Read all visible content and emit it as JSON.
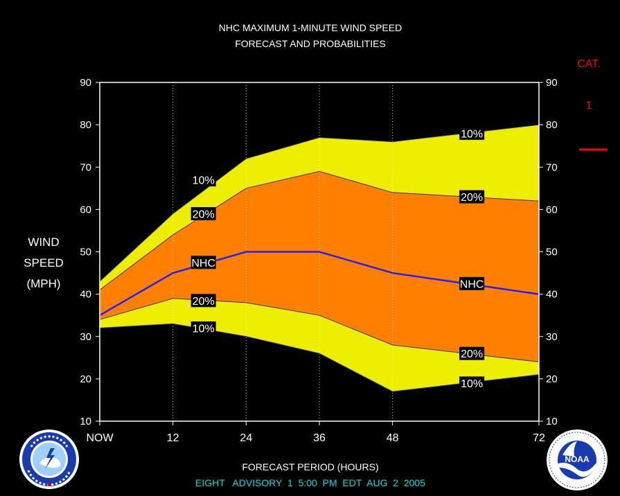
{
  "title_line1": "NHC MAXIMUM 1-MINUTE WIND SPEED",
  "title_line2": "FORECAST AND PROBABILITIES",
  "footer_xlabel": "FORECAST PERIOD (HOURS)",
  "footer_advisory": "EIGHT   ADVISORY  1  5:00  PM  EDT  AUG  2  2005",
  "legend": {
    "header": "CAT.",
    "category": "1",
    "color": "#ff0000"
  },
  "ylabel_lines": [
    "WIND",
    "SPEED",
    "(MPH)"
  ],
  "chart_data": {
    "type": "area",
    "x": [
      0,
      12,
      24,
      36,
      48,
      72
    ],
    "xticks": [
      {
        "x": 0,
        "label": "NOW"
      },
      {
        "x": 12,
        "label": "12"
      },
      {
        "x": 24,
        "label": "24"
      },
      {
        "x": 36,
        "label": "36"
      },
      {
        "x": 48,
        "label": "48"
      },
      {
        "x": 72,
        "label": "72"
      }
    ],
    "ylim": [
      10,
      90
    ],
    "yticks": [
      10,
      20,
      30,
      40,
      50,
      60,
      70,
      80,
      90
    ],
    "upper_10": [
      43,
      59,
      72,
      77,
      76,
      80
    ],
    "upper_20": [
      41,
      54,
      65,
      69,
      64,
      62
    ],
    "nhc": [
      35,
      45,
      50,
      50,
      45,
      40
    ],
    "lower_20": [
      34,
      39,
      38,
      35,
      28,
      24
    ],
    "lower_10": [
      32,
      33,
      30,
      26,
      17,
      21
    ],
    "series_labels": [
      {
        "text": "10%",
        "x": 17,
        "y": 67
      },
      {
        "text": "20%",
        "x": 17,
        "y": 59
      },
      {
        "text": "NHC",
        "x": 17,
        "y": 47.5
      },
      {
        "text": "20%",
        "x": 17,
        "y": 38.5
      },
      {
        "text": "10%",
        "x": 17,
        "y": 32
      },
      {
        "text": "10%",
        "x": 61,
        "y": 78
      },
      {
        "text": "20%",
        "x": 61,
        "y": 63
      },
      {
        "text": "NHC",
        "x": 61,
        "y": 42.5
      },
      {
        "text": "20%",
        "x": 61,
        "y": 26
      },
      {
        "text": "10%",
        "x": 61,
        "y": 19
      }
    ],
    "colors": {
      "outer": "#eeee00",
      "inner": "#ff8000",
      "nhc": "#2020ff",
      "edge": "#3030a0"
    }
  }
}
